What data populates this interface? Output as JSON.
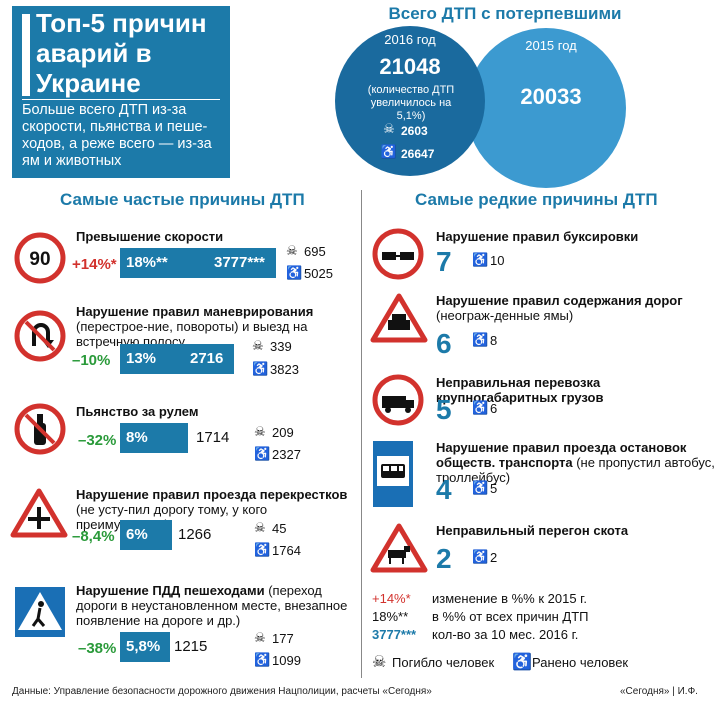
{
  "title": "Топ-5 причин аварий в Украине",
  "subtitle": "Больше всего ДТП из-за скорости, пьянства и пеше-ходов, а реже всего — из-за ям и животных",
  "totals": {
    "heading": "Всего ДТП с потерпевшими",
    "y2016": {
      "year": "2016 год",
      "total": "21048",
      "note": "(количество ДТП увеличилось на 5,1%)",
      "killed": "2603",
      "injured": "26647"
    },
    "y2015": {
      "year": "2015 год",
      "total": "20033"
    }
  },
  "frequent": {
    "heading": "Самые частые причины ДТП",
    "items": [
      {
        "title": "Превышение скорости",
        "title_rest": "",
        "change": "+14%*",
        "share": "18%**",
        "count": "3777***",
        "killed": "695",
        "injured": "5025",
        "sign": "speed-limit-90-sign"
      },
      {
        "title": "Нарушение правил маневрирования",
        "title_rest": " (перестрое-ние, повороты) и выезд на встречную полосу",
        "change": "–10%",
        "share": "13%",
        "count": "2716",
        "killed": "339",
        "injured": "3823",
        "sign": "no-u-turn-sign"
      },
      {
        "title": "Пьянство за рулем",
        "title_rest": "",
        "change": "–32%",
        "share": "8%",
        "count": "1714",
        "killed": "209",
        "injured": "2327",
        "sign": "no-alcohol-sign"
      },
      {
        "title": "Нарушение правил проезда перекрестков",
        "title_rest": " (не усту-пил дорогу тому, у кого преимущество)",
        "change": "–8,4%",
        "share": "6%",
        "count": "1266",
        "killed": "45",
        "injured": "1764",
        "sign": "intersection-sign"
      },
      {
        "title": "Нарушение ПДД пешеходами",
        "title_rest": " (переход дороги в неустановленном месте, внезапное появление на дороге и др.)",
        "change": "–38%",
        "share": "5,8%",
        "count": "1215",
        "killed": "177",
        "injured": "1099",
        "sign": "pedestrian-crossing-sign"
      }
    ]
  },
  "rare": {
    "heading": "Самые редкие причины ДТП",
    "items": [
      {
        "title": "Нарушение правил буксировки",
        "title_rest": "",
        "count": "7",
        "injured": "10",
        "sign": "no-towing-sign"
      },
      {
        "title": "Нарушение правил содержания дорог",
        "title_rest": " (неограж-денные ямы)",
        "count": "6",
        "injured": "8",
        "sign": "road-works-sign"
      },
      {
        "title": "Неправильная перевозка крупногабаритных грузов",
        "title_rest": "",
        "count": "5",
        "injured": "6",
        "sign": "no-oversized-truck-sign"
      },
      {
        "title": "Нарушение правил проезда остановок обществ. транспорта",
        "title_rest": " (не пропустил автобус, троллейбус)",
        "count": "4",
        "injured": "5",
        "sign": "bus-stop-sign"
      },
      {
        "title": "Неправильный перегон скота",
        "title_rest": "",
        "count": "2",
        "injured": "2",
        "sign": "cattle-sign"
      }
    ]
  },
  "legend": {
    "change_mark": "+14%*",
    "change_text": "изменение в %% к 2015 г.",
    "share_mark": "18%**",
    "share_text": "в %% от всех причин ДТП",
    "count_mark": "3777***",
    "count_text": "кол-во за 10 мес. 2016 г.",
    "killed": "Погибло человек",
    "injured": "Ранено человек"
  },
  "footer": {
    "source": "Данные: Управление безопасности дорожного движения Нацполиции, расчеты «Сегодня»",
    "credit": "«Сегодня» | И.Ф."
  },
  "colors": {
    "brand_blue": "#1c7aa9",
    "up_red": "#d2322d",
    "down_green": "#2a9a3a"
  }
}
